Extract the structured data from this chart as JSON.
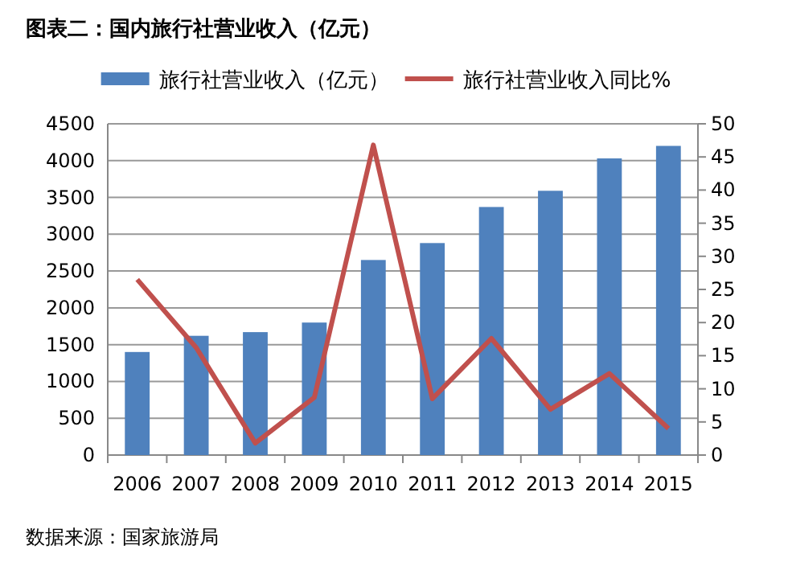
{
  "chart_data": {
    "type": "bar",
    "title": "图表二：国内旅行社营业收入（亿元）",
    "categories": [
      "2006",
      "2007",
      "2008",
      "2009",
      "2010",
      "2011",
      "2012",
      "2013",
      "2014",
      "2015"
    ],
    "series": [
      {
        "name": "旅行社营业收入（亿元）",
        "color": "#4f81bd",
        "values": [
          1400,
          1620,
          1670,
          1800,
          2650,
          2880,
          3370,
          3590,
          4030,
          4200
        ]
      },
      {
        "name": "旅行社营业收入同比%",
        "type": "line",
        "axis": "y2",
        "color": "#c0504d",
        "values": [
          26.5,
          16.2,
          1.8,
          8.7,
          46.8,
          8.5,
          17.6,
          6.9,
          12.3,
          4.0
        ]
      }
    ],
    "ylim": [
      0,
      4500
    ],
    "yticks": [
      0,
      500,
      1000,
      1500,
      2000,
      2500,
      3000,
      3500,
      4000,
      4500
    ],
    "y2lim": [
      0,
      50
    ],
    "y2ticks": [
      0,
      5,
      10,
      15,
      20,
      25,
      30,
      35,
      40,
      45,
      50
    ],
    "grid": "y",
    "legend": "top",
    "annotations": [
      "数据来源：国家旅游局"
    ]
  }
}
